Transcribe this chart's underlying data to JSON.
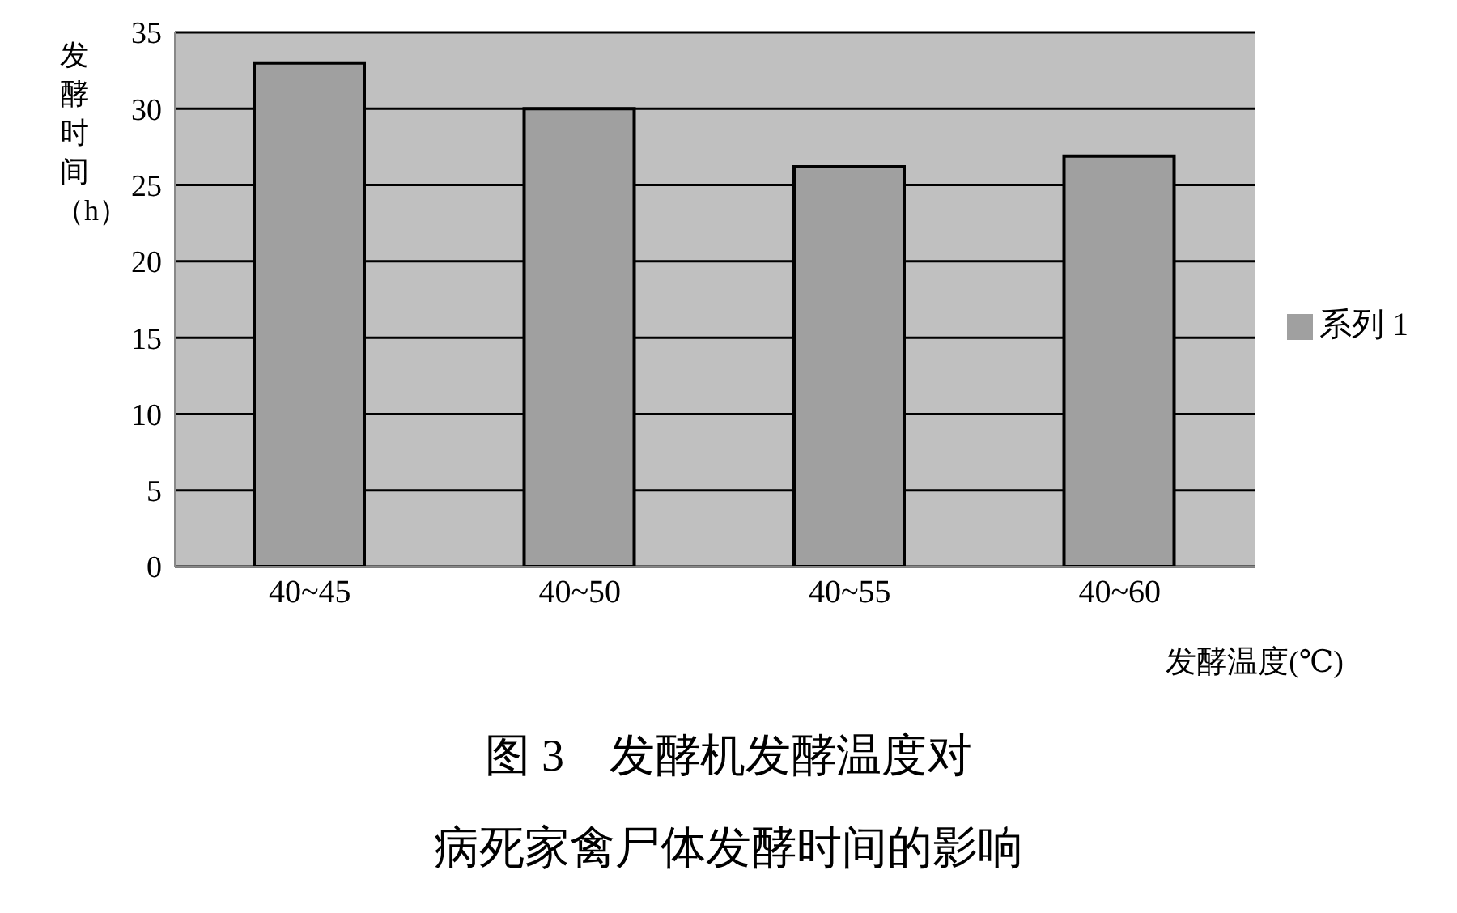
{
  "chart_data": {
    "type": "bar",
    "title": "图 3　发酵机发酵温度对",
    "subtitle": "病死家禽尸体发酵时间的影响",
    "xlabel": "发酵温度(℃)",
    "ylabel": "发酵时间（h）",
    "categories": [
      "40~45",
      "40~50",
      "40~55",
      "40~60"
    ],
    "series": [
      {
        "name": "系列 1",
        "color": "#a0a0a0",
        "values": [
          33,
          30,
          26.2,
          26.9
        ]
      }
    ],
    "ylim": [
      0,
      35
    ],
    "yticks": [
      0,
      5,
      10,
      15,
      20,
      25,
      30,
      35
    ],
    "grid": "y",
    "legend": "right"
  }
}
